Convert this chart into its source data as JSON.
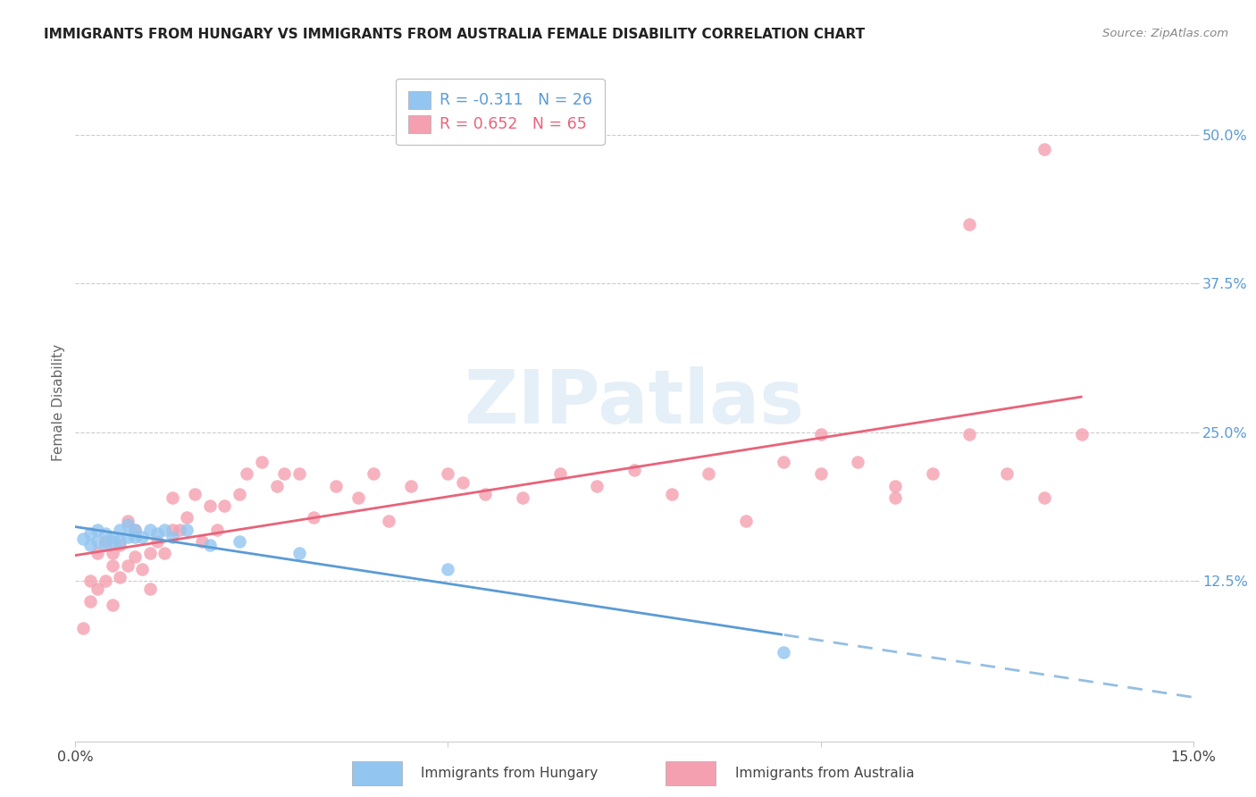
{
  "title": "IMMIGRANTS FROM HUNGARY VS IMMIGRANTS FROM AUSTRALIA FEMALE DISABILITY CORRELATION CHART",
  "source": "Source: ZipAtlas.com",
  "ylabel": "Female Disability",
  "xlim": [
    0.0,
    0.15
  ],
  "ylim": [
    -0.01,
    0.56
  ],
  "ytick_vals": [
    0.125,
    0.25,
    0.375,
    0.5
  ],
  "ytick_labels": [
    "12.5%",
    "25.0%",
    "37.5%",
    "50.0%"
  ],
  "xtick_vals": [
    0.0,
    0.05,
    0.1,
    0.15
  ],
  "xtick_labels": [
    "0.0%",
    "",
    "",
    "15.0%"
  ],
  "hungary_color": "#92C5F0",
  "australia_color": "#F4A0B0",
  "hungary_line_color": "#5B9BD5",
  "australia_line_color": "#E8637A",
  "legend_hungary_R": "-0.311",
  "legend_hungary_N": "26",
  "legend_australia_R": "0.652",
  "legend_australia_N": "65",
  "watermark": "ZIPatlas",
  "hungary_x": [
    0.001,
    0.002,
    0.002,
    0.003,
    0.003,
    0.004,
    0.004,
    0.005,
    0.005,
    0.006,
    0.006,
    0.007,
    0.007,
    0.008,
    0.008,
    0.009,
    0.01,
    0.011,
    0.012,
    0.013,
    0.015,
    0.018,
    0.022,
    0.03,
    0.05,
    0.095
  ],
  "hungary_y": [
    0.16,
    0.155,
    0.165,
    0.158,
    0.168,
    0.155,
    0.165,
    0.158,
    0.162,
    0.158,
    0.168,
    0.162,
    0.172,
    0.162,
    0.168,
    0.162,
    0.168,
    0.165,
    0.168,
    0.162,
    0.168,
    0.155,
    0.158,
    0.148,
    0.135,
    0.065
  ],
  "australia_x": [
    0.001,
    0.002,
    0.002,
    0.003,
    0.003,
    0.004,
    0.004,
    0.005,
    0.005,
    0.005,
    0.006,
    0.006,
    0.007,
    0.007,
    0.008,
    0.008,
    0.009,
    0.01,
    0.01,
    0.011,
    0.012,
    0.013,
    0.013,
    0.014,
    0.015,
    0.016,
    0.017,
    0.018,
    0.019,
    0.02,
    0.022,
    0.023,
    0.025,
    0.027,
    0.028,
    0.03,
    0.032,
    0.035,
    0.038,
    0.04,
    0.042,
    0.045,
    0.05,
    0.052,
    0.055,
    0.06,
    0.065,
    0.07,
    0.075,
    0.08,
    0.085,
    0.09,
    0.095,
    0.1,
    0.105,
    0.11,
    0.115,
    0.12,
    0.125,
    0.13,
    0.1,
    0.11,
    0.12,
    0.13,
    0.135
  ],
  "australia_y": [
    0.085,
    0.108,
    0.125,
    0.118,
    0.148,
    0.125,
    0.158,
    0.105,
    0.138,
    0.148,
    0.128,
    0.155,
    0.138,
    0.175,
    0.145,
    0.168,
    0.135,
    0.118,
    0.148,
    0.158,
    0.148,
    0.168,
    0.195,
    0.168,
    0.178,
    0.198,
    0.158,
    0.188,
    0.168,
    0.188,
    0.198,
    0.215,
    0.225,
    0.205,
    0.215,
    0.215,
    0.178,
    0.205,
    0.195,
    0.215,
    0.175,
    0.205,
    0.215,
    0.208,
    0.198,
    0.195,
    0.215,
    0.205,
    0.218,
    0.198,
    0.215,
    0.175,
    0.225,
    0.215,
    0.225,
    0.195,
    0.215,
    0.248,
    0.215,
    0.195,
    0.248,
    0.205,
    0.425,
    0.488,
    0.248
  ]
}
